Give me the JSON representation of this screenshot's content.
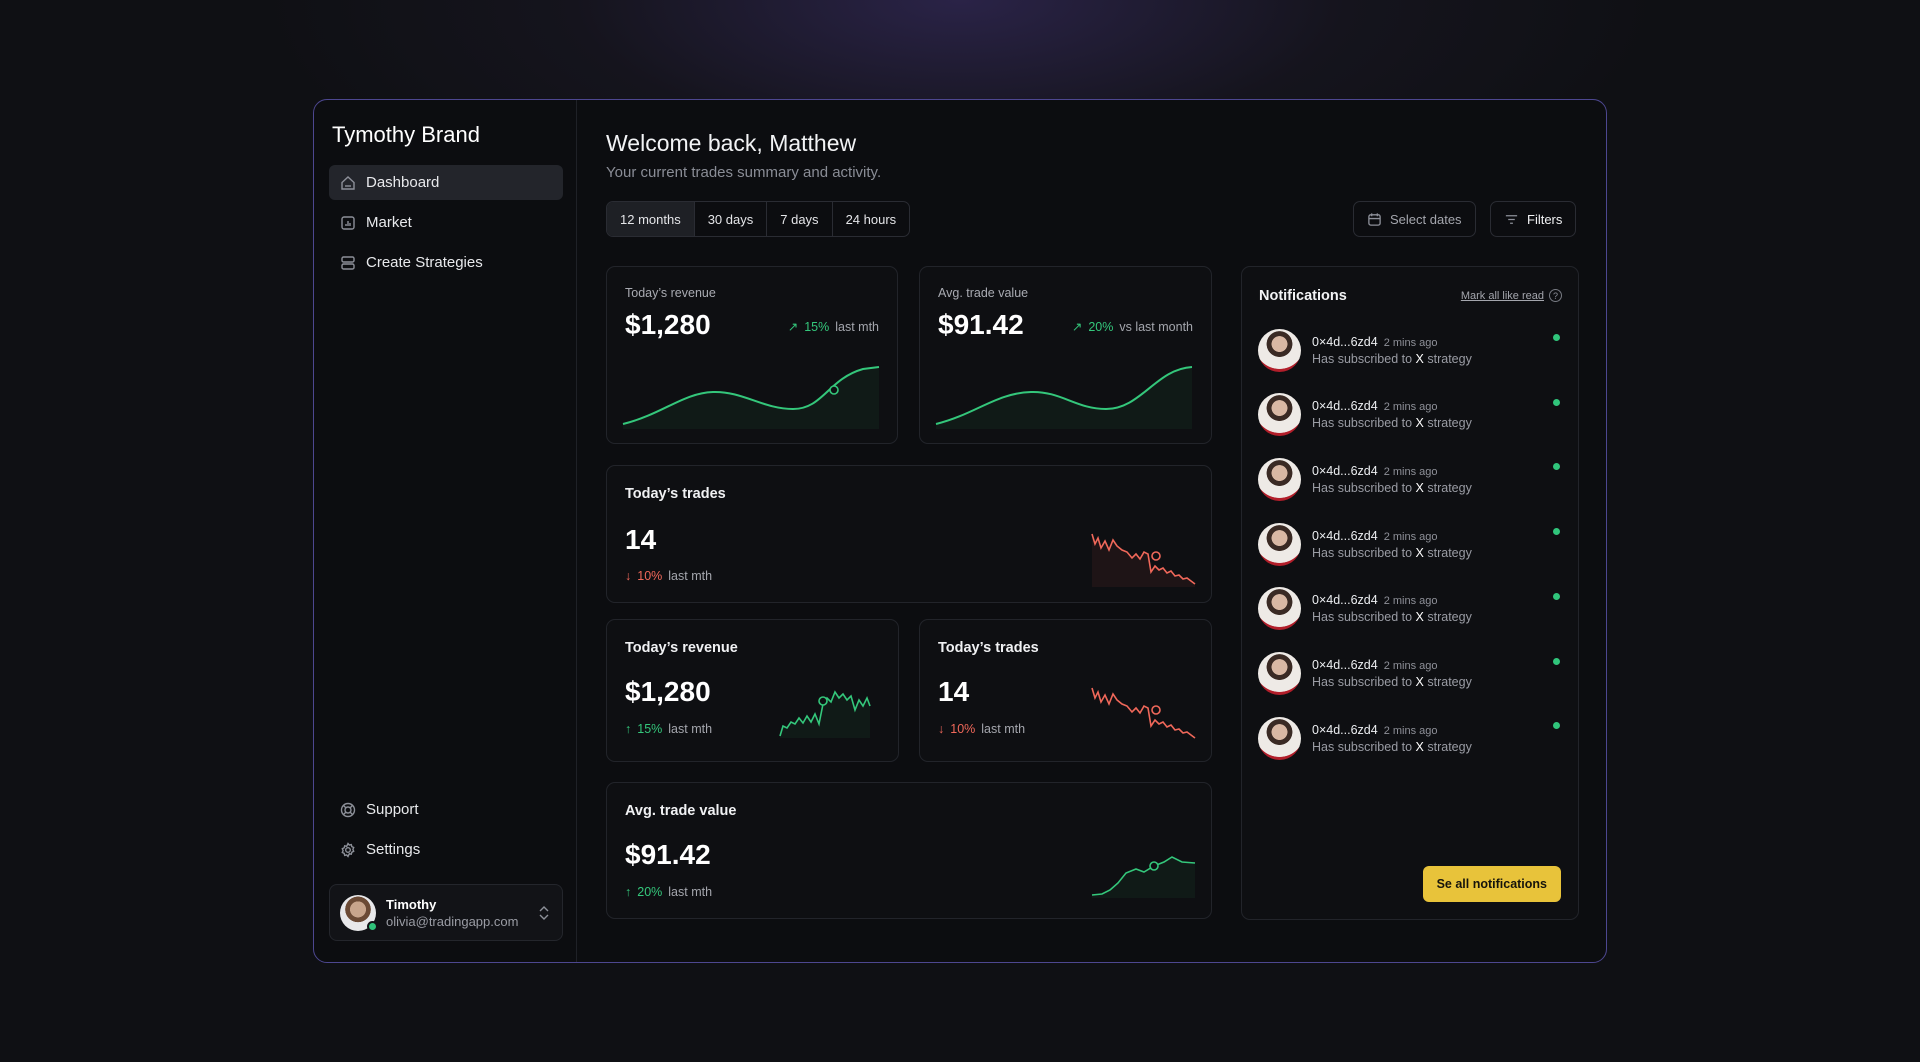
{
  "sidebar": {
    "brand": "Tymothy Brand",
    "items": [
      {
        "label": "Dashboard",
        "icon": "home-icon"
      },
      {
        "label": "Market",
        "icon": "bar-chart-icon"
      },
      {
        "label": "Create Strategies",
        "icon": "layers-icon"
      }
    ],
    "bottom_items": [
      {
        "label": "Support",
        "icon": "lifebuoy-icon"
      },
      {
        "label": "Settings",
        "icon": "gear-icon"
      }
    ],
    "user": {
      "name": "Timothy",
      "email": "olivia@tradingapp.com"
    }
  },
  "header": {
    "title": "Welcome back, Matthew",
    "subtitle": "Your current trades summary and activity."
  },
  "tabs": [
    "12 months",
    "30 days",
    "7 days",
    "24 hours"
  ],
  "toolbar": {
    "select_dates": "Select dates",
    "filters": "Filters"
  },
  "cards": {
    "revenue_top": {
      "label": "Today’s revenue",
      "value": "$1,280",
      "change": "15%",
      "period": "last mth"
    },
    "avg_top": {
      "label": "Avg. trade value",
      "value": "$91.42",
      "change": "20%",
      "period": "vs last month"
    },
    "trades_wide": {
      "label": "Today’s trades",
      "value": "14",
      "change": "10%",
      "period": "last mth"
    },
    "revenue_small": {
      "label": "Today’s revenue",
      "value": "$1,280",
      "change": "15%",
      "period": "last mth"
    },
    "trades_small": {
      "label": "Today’s trades",
      "value": "14",
      "change": "10%",
      "period": "last mth"
    },
    "avg_wide": {
      "label": "Avg. trade value",
      "value": "$91.42",
      "change": "20%",
      "period": "last mth"
    }
  },
  "notifications": {
    "title": "Notifications",
    "mark_read": "Mark all like read",
    "see_all": "Se all notifications",
    "items": [
      {
        "user": "0×4d...6zd4",
        "time": "2 mins ago",
        "pre": "Has subscribed to",
        "strong": "X",
        "post": "strategy"
      },
      {
        "user": "0×4d...6zd4",
        "time": "2 mins ago",
        "pre": "Has subscribed to",
        "strong": "X",
        "post": "strategy"
      },
      {
        "user": "0×4d...6zd4",
        "time": "2 mins ago",
        "pre": "Has subscribed to",
        "strong": "X",
        "post": "strategy"
      },
      {
        "user": "0×4d...6zd4",
        "time": "2 mins ago",
        "pre": "Has subscribed to",
        "strong": "X",
        "post": "strategy"
      },
      {
        "user": "0×4d...6zd4",
        "time": "2 mins ago",
        "pre": "Has subscribed to",
        "strong": "X",
        "post": "strategy"
      },
      {
        "user": "0×4d...6zd4",
        "time": "2 mins ago",
        "pre": "Has subscribed to",
        "strong": "X",
        "post": "strategy"
      },
      {
        "user": "0×4d...6zd4",
        "time": "2 mins ago",
        "pre": "Has subscribed to",
        "strong": "X",
        "post": "strategy"
      }
    ]
  },
  "colors": {
    "accent": "#e8c33a",
    "positive": "#34c77b",
    "negative": "#f0685a",
    "border": "#4d4790"
  }
}
